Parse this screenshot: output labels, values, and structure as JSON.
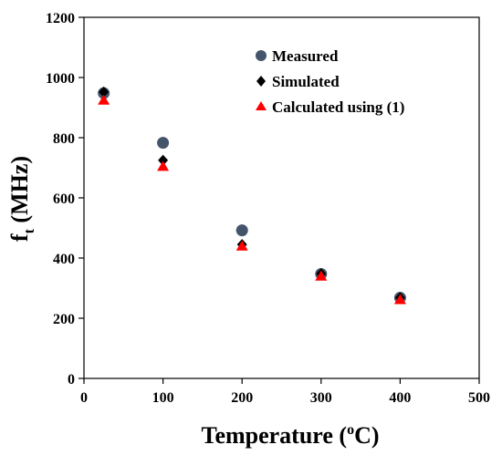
{
  "chart_data": {
    "type": "scatter",
    "title": "",
    "xlabel": {
      "main": "Temperature (",
      "sup": "o",
      "post": "C)"
    },
    "ylabel": {
      "main": "f",
      "sub": "t",
      "post": " (MHz)"
    },
    "xlim": [
      0,
      500
    ],
    "ylim": [
      0,
      1200
    ],
    "xticks": [
      "0",
      "100",
      "200",
      "300",
      "400",
      "500"
    ],
    "yticks": [
      "0",
      "200",
      "400",
      "600",
      "800",
      "1000",
      "1200"
    ],
    "grid": false,
    "legend_position": "top-right",
    "series": [
      {
        "name": "Measured",
        "marker": "circle",
        "color": "#44546a",
        "points": [
          [
            25,
            948
          ],
          [
            100,
            783
          ],
          [
            200,
            492
          ],
          [
            300,
            347
          ],
          [
            400,
            268
          ]
        ]
      },
      {
        "name": "Simulated",
        "marker": "diamond",
        "color": "#000000",
        "points": [
          [
            25,
            952
          ],
          [
            100,
            725
          ],
          [
            200,
            445
          ],
          [
            300,
            348
          ],
          [
            400,
            268
          ]
        ]
      },
      {
        "name": "Calculated using (1)",
        "marker": "triangle",
        "color": "#ff0000",
        "points": [
          [
            25,
            925
          ],
          [
            100,
            705
          ],
          [
            200,
            440
          ],
          [
            300,
            340
          ],
          [
            400,
            262
          ]
        ]
      }
    ]
  }
}
